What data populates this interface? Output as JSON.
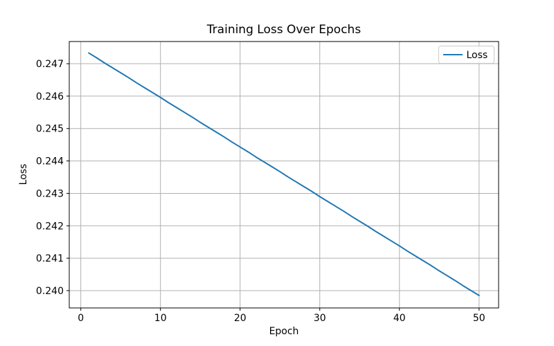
{
  "figure": {
    "background_color": "#ffffff",
    "title": "Training Loss Over Epochs",
    "xlabel": "Epoch",
    "ylabel": "Loss",
    "legend": {
      "label": "Loss",
      "line_color": "#1f77b4"
    },
    "colors": {
      "line": "#1f77b4",
      "grid": "#b0b0b0",
      "spine": "#000000",
      "legend_edge": "#cccccc",
      "legend_face": "#ffffff"
    }
  },
  "chart_data": {
    "type": "line",
    "title": "Training Loss Over Epochs",
    "xlabel": "Epoch",
    "ylabel": "Loss",
    "grid": true,
    "legend_position": "upper right",
    "legend_entries": [
      "Loss"
    ],
    "xlim": [
      -1.45,
      52.45
    ],
    "ylim": [
      0.239466,
      0.247684
    ],
    "x_ticks": [
      0,
      10,
      20,
      30,
      40,
      50
    ],
    "x_tick_labels": [
      "0",
      "10",
      "20",
      "30",
      "40",
      "50"
    ],
    "y_ticks": [
      0.24,
      0.241,
      0.242,
      0.243,
      0.244,
      0.245,
      0.246,
      0.247
    ],
    "y_tick_labels": [
      "0.240",
      "0.241",
      "0.242",
      "0.243",
      "0.244",
      "0.245",
      "0.246",
      "0.247"
    ],
    "series": [
      {
        "name": "Loss",
        "color": "#1f77b4",
        "x": [
          1,
          2,
          3,
          4,
          5,
          6,
          7,
          8,
          9,
          10,
          11,
          12,
          13,
          14,
          15,
          16,
          17,
          18,
          19,
          20,
          21,
          22,
          23,
          24,
          25,
          26,
          27,
          28,
          29,
          30,
          31,
          32,
          33,
          34,
          35,
          36,
          37,
          38,
          39,
          40,
          41,
          42,
          43,
          44,
          45,
          46,
          47,
          48,
          49,
          50
        ],
        "y": [
          0.24733,
          0.24718,
          0.24702,
          0.24687,
          0.24672,
          0.24657,
          0.24641,
          0.24626,
          0.24611,
          0.24596,
          0.2458,
          0.24565,
          0.2455,
          0.24535,
          0.24519,
          0.24504,
          0.24489,
          0.24474,
          0.24458,
          0.24443,
          0.24428,
          0.24412,
          0.24397,
          0.24382,
          0.24367,
          0.24351,
          0.24336,
          0.24321,
          0.24306,
          0.2429,
          0.24275,
          0.2426,
          0.24245,
          0.24229,
          0.24214,
          0.24199,
          0.24183,
          0.24168,
          0.24153,
          0.24138,
          0.24122,
          0.24107,
          0.24092,
          0.24077,
          0.24061,
          0.24046,
          0.24031,
          0.24015,
          0.24,
          0.23985
        ]
      }
    ]
  }
}
